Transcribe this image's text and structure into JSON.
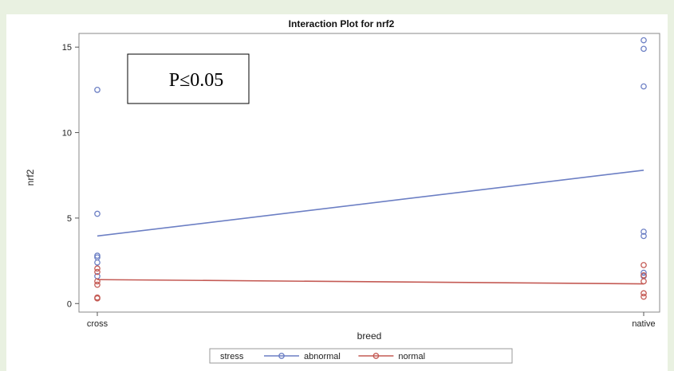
{
  "chart_data": {
    "type": "scatter",
    "title": "Interaction Plot for nrf2",
    "xlabel": "breed",
    "ylabel": "nrf2",
    "categories": [
      "cross",
      "native"
    ],
    "ylim": [
      -0.5,
      15.8
    ],
    "yticks": [
      0,
      5,
      10,
      15
    ],
    "grid": false,
    "legend_position": "bottom",
    "legend_title": "stress",
    "annotation": "P≤0.05",
    "series": [
      {
        "name": "abnormal",
        "color": "#6c7fc4",
        "line": [
          3.95,
          7.8
        ],
        "points": {
          "cross": [
            12.5,
            5.25,
            2.8,
            2.7,
            2.4,
            1.6
          ],
          "native": [
            15.4,
            14.9,
            12.7,
            4.2,
            3.95,
            1.8,
            1.6
          ]
        }
      },
      {
        "name": "normal",
        "color": "#c45a54",
        "line": [
          1.4,
          1.15
        ],
        "points": {
          "cross": [
            2.05,
            1.85,
            1.3,
            1.1,
            0.35,
            0.3
          ],
          "native": [
            2.25,
            1.65,
            1.3,
            0.6,
            0.4
          ]
        }
      }
    ]
  }
}
